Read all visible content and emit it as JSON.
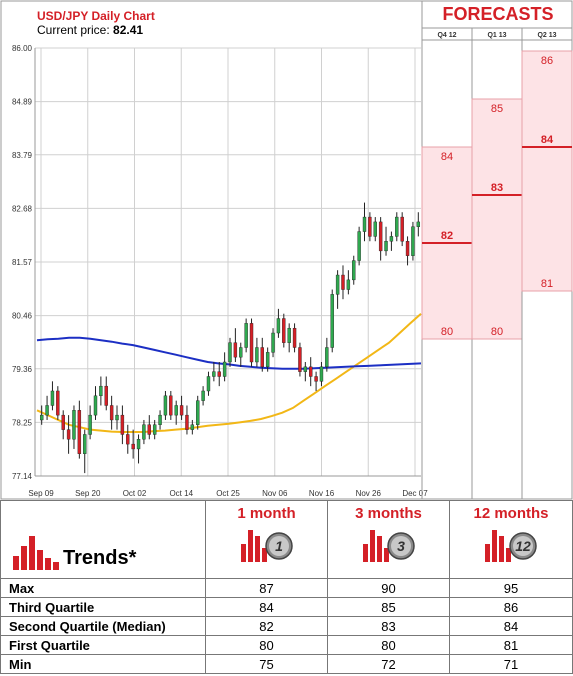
{
  "chart": {
    "title": "USD/JPY Daily Chart",
    "price_label": "Current price:",
    "price_value": "82.41",
    "forecasts_title": "FORECASTS"
  },
  "chart_data": [
    {
      "type": "candlestick",
      "title": "USD/JPY Daily Chart",
      "y_ticks": [
        "86.00",
        "84.89",
        "83.79",
        "82.68",
        "81.57",
        "80.46",
        "79.36",
        "78.25",
        "77.14"
      ],
      "ylim": [
        77.14,
        86.0
      ],
      "x_ticks": [
        "Sep 09",
        "Sep 20",
        "Oct 02",
        "Oct 14",
        "Oct 25",
        "Nov 06",
        "Nov 16",
        "Nov 26",
        "Dec 07"
      ],
      "grid": true,
      "candles": [
        [
          78.3,
          78.6,
          78.2,
          78.4
        ],
        [
          78.4,
          78.8,
          78.3,
          78.6
        ],
        [
          78.6,
          79.1,
          78.5,
          78.9
        ],
        [
          78.9,
          79.0,
          78.3,
          78.4
        ],
        [
          78.4,
          78.5,
          77.9,
          78.1
        ],
        [
          78.1,
          78.4,
          77.6,
          77.9
        ],
        [
          77.9,
          78.6,
          77.7,
          78.5
        ],
        [
          78.5,
          78.7,
          77.5,
          77.6
        ],
        [
          77.6,
          78.1,
          77.2,
          78.0
        ],
        [
          78.0,
          78.6,
          77.9,
          78.4
        ],
        [
          78.4,
          79.0,
          78.3,
          78.8
        ],
        [
          78.8,
          79.2,
          78.6,
          79.0
        ],
        [
          79.0,
          79.2,
          78.5,
          78.6
        ],
        [
          78.6,
          78.8,
          78.1,
          78.3
        ],
        [
          78.3,
          78.6,
          78.1,
          78.4
        ],
        [
          78.4,
          78.6,
          77.8,
          78.0
        ],
        [
          78.0,
          78.2,
          77.6,
          77.8
        ],
        [
          77.8,
          78.1,
          77.5,
          77.7
        ],
        [
          77.7,
          78.0,
          77.4,
          77.9
        ],
        [
          77.9,
          78.3,
          77.8,
          78.2
        ],
        [
          78.2,
          78.4,
          77.9,
          78.0
        ],
        [
          78.0,
          78.3,
          77.9,
          78.2
        ],
        [
          78.2,
          78.5,
          78.1,
          78.4
        ],
        [
          78.4,
          78.9,
          78.3,
          78.8
        ],
        [
          78.8,
          78.9,
          78.3,
          78.4
        ],
        [
          78.4,
          78.7,
          78.2,
          78.6
        ],
        [
          78.6,
          78.8,
          78.3,
          78.4
        ],
        [
          78.4,
          78.6,
          78.0,
          78.1
        ],
        [
          78.1,
          78.3,
          78.0,
          78.2
        ],
        [
          78.2,
          78.8,
          78.1,
          78.7
        ],
        [
          78.7,
          79.0,
          78.6,
          78.9
        ],
        [
          78.9,
          79.3,
          78.8,
          79.2
        ],
        [
          79.2,
          79.5,
          79.1,
          79.3
        ],
        [
          79.3,
          79.5,
          79.0,
          79.2
        ],
        [
          79.2,
          79.7,
          79.1,
          79.5
        ],
        [
          79.5,
          80.0,
          79.4,
          79.9
        ],
        [
          79.9,
          80.2,
          79.5,
          79.6
        ],
        [
          79.6,
          79.9,
          79.4,
          79.8
        ],
        [
          79.8,
          80.4,
          79.7,
          80.3
        ],
        [
          80.3,
          80.4,
          79.4,
          79.5
        ],
        [
          79.5,
          80.0,
          79.4,
          79.8
        ],
        [
          79.8,
          80.0,
          79.3,
          79.4
        ],
        [
          79.4,
          79.8,
          79.3,
          79.7
        ],
        [
          79.7,
          80.2,
          79.6,
          80.1
        ],
        [
          80.1,
          80.6,
          80.0,
          80.4
        ],
        [
          80.4,
          80.5,
          79.8,
          79.9
        ],
        [
          79.9,
          80.3,
          79.7,
          80.2
        ],
        [
          80.2,
          80.3,
          79.7,
          79.8
        ],
        [
          79.8,
          79.9,
          79.2,
          79.3
        ],
        [
          79.3,
          79.5,
          79.1,
          79.4
        ],
        [
          79.4,
          79.6,
          79.0,
          79.2
        ],
        [
          79.2,
          79.3,
          78.9,
          79.1
        ],
        [
          79.1,
          79.5,
          79.0,
          79.4
        ],
        [
          79.4,
          80.0,
          79.3,
          79.8
        ],
        [
          79.8,
          81.0,
          79.7,
          80.9
        ],
        [
          80.9,
          81.4,
          80.6,
          81.3
        ],
        [
          81.3,
          81.5,
          80.8,
          81.0
        ],
        [
          81.0,
          81.4,
          80.9,
          81.2
        ],
        [
          81.2,
          81.7,
          81.1,
          81.6
        ],
        [
          81.6,
          82.3,
          81.5,
          82.2
        ],
        [
          82.2,
          82.8,
          82.0,
          82.5
        ],
        [
          82.5,
          82.6,
          82.0,
          82.1
        ],
        [
          82.1,
          82.5,
          82.0,
          82.4
        ],
        [
          82.4,
          82.5,
          81.6,
          81.8
        ],
        [
          81.8,
          82.3,
          81.7,
          82.0
        ],
        [
          82.0,
          82.2,
          81.8,
          82.1
        ],
        [
          82.1,
          82.6,
          82.0,
          82.5
        ],
        [
          82.5,
          82.6,
          81.9,
          82.0
        ],
        [
          82.0,
          82.1,
          81.5,
          81.7
        ],
        [
          81.7,
          82.4,
          81.6,
          82.3
        ],
        [
          82.3,
          82.6,
          82.1,
          82.4
        ]
      ],
      "overlays": [
        {
          "name": "",
          "color": "#f2b716",
          "values": [
            78.5,
            78.4,
            78.3,
            78.2,
            78.15,
            78.1,
            78.08,
            78.06,
            78.05,
            78.05,
            78.05,
            78.07,
            78.08,
            78.1,
            78.12,
            78.15,
            78.18,
            78.2,
            78.22,
            78.25,
            78.28,
            78.32,
            78.38,
            78.45,
            78.55,
            78.7,
            78.85,
            79.0,
            79.15,
            79.3,
            79.45,
            79.6,
            79.75,
            79.9,
            80.1,
            80.3,
            80.5
          ]
        },
        {
          "name": "",
          "color": "#1c2fc4",
          "values": [
            79.95,
            79.97,
            79.98,
            80.0,
            80.0,
            79.98,
            79.95,
            79.92,
            79.88,
            79.85,
            79.8,
            79.75,
            79.7,
            79.65,
            79.6,
            79.55,
            79.5,
            79.47,
            79.45,
            79.42,
            79.4,
            79.38,
            79.37,
            79.36,
            79.36,
            79.36,
            79.37,
            79.38,
            79.39,
            79.4,
            79.41,
            79.42,
            79.43,
            79.44,
            79.45,
            79.46,
            79.47
          ]
        }
      ]
    },
    {
      "type": "forecast-range",
      "title": "FORECASTS",
      "categories": [
        "Q4 12",
        "Q1 13",
        "Q2 13"
      ],
      "series": [
        {
          "upper": 84,
          "median": 82,
          "lower": 80
        },
        {
          "upper": 85,
          "median": 83,
          "lower": 80
        },
        {
          "upper": 86,
          "median": 84,
          "lower": 81
        }
      ]
    }
  ],
  "table": {
    "trends_label": "Trends*",
    "columns": [
      {
        "title": "1 month",
        "badge": "1"
      },
      {
        "title": "3 months",
        "badge": "3"
      },
      {
        "title": "12 months",
        "badge": "12"
      }
    ],
    "rows": [
      {
        "label": "Max",
        "values": [
          "87",
          "90",
          "95"
        ]
      },
      {
        "label": "Third Quartile",
        "values": [
          "84",
          "85",
          "86"
        ]
      },
      {
        "label": "Second Quartile (Median)",
        "values": [
          "82",
          "83",
          "84"
        ]
      },
      {
        "label": "First Quartile",
        "values": [
          "80",
          "80",
          "81"
        ]
      },
      {
        "label": "Min",
        "values": [
          "75",
          "72",
          "71"
        ]
      }
    ]
  },
  "colors": {
    "accent": "#d42027",
    "up": "#2fa84f",
    "down": "#d42027",
    "band": "#fde3e6"
  }
}
